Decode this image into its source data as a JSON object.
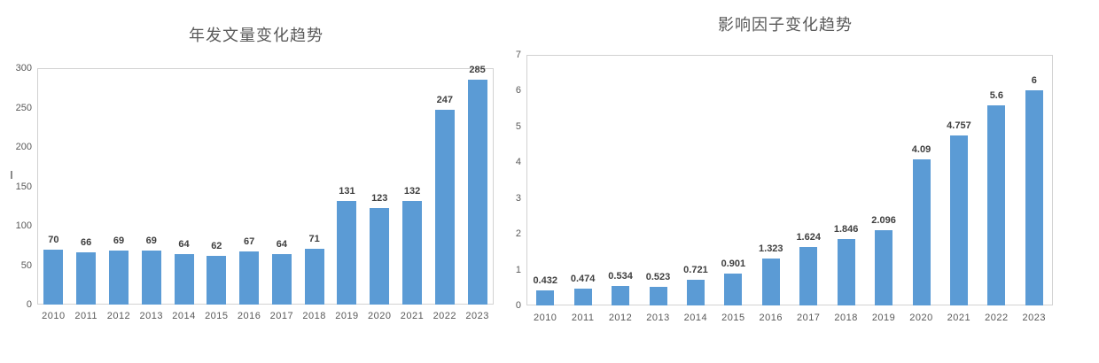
{
  "page": {
    "background": "#ffffff"
  },
  "colors": {
    "bar": "#5B9BD5",
    "title_text": "#595959",
    "axis_text": "#595959",
    "data_label_text": "#3f3f3f",
    "plot_border": "#d2d2d2"
  },
  "chart_data": [
    {
      "type": "bar",
      "title": "年发文量变化趋势",
      "categories": [
        "2010",
        "2011",
        "2012",
        "2013",
        "2014",
        "2015",
        "2016",
        "2017",
        "2018",
        "2019",
        "2020",
        "2021",
        "2022",
        "2023"
      ],
      "values": [
        70,
        66,
        69,
        69,
        64,
        62,
        67,
        64,
        71,
        131,
        123,
        132,
        247,
        285
      ],
      "labels": [
        "70",
        "66",
        "69",
        "69",
        "64",
        "62",
        "67",
        "64",
        "71",
        "131",
        "123",
        "132",
        "247",
        "285"
      ],
      "xlabel": "",
      "ylabel": "",
      "ylim": [
        0,
        300
      ],
      "ytick_step": 50,
      "ytick_labels": [
        "0",
        "50",
        "100",
        "150",
        "200",
        "250",
        "300"
      ],
      "grid": false,
      "legend": false,
      "bar_color": "#5B9BD5"
    },
    {
      "type": "bar",
      "title": "影响因子变化趋势",
      "categories": [
        "2010",
        "2011",
        "2012",
        "2013",
        "2014",
        "2015",
        "2016",
        "2017",
        "2018",
        "2019",
        "2020",
        "2021",
        "2022",
        "2023"
      ],
      "values": [
        0.432,
        0.474,
        0.534,
        0.523,
        0.721,
        0.901,
        1.323,
        1.624,
        1.846,
        2.096,
        4.09,
        4.757,
        5.6,
        6
      ],
      "labels": [
        "0.432",
        "0.474",
        "0.534",
        "0.523",
        "0.721",
        "0.901",
        "1.323",
        "1.624",
        "1.846",
        "2.096",
        "4.09",
        "4.757",
        "5.6",
        "6"
      ],
      "xlabel": "",
      "ylabel": "",
      "ylim": [
        0,
        7
      ],
      "ytick_step": 1,
      "ytick_labels": [
        "0",
        "1",
        "2",
        "3",
        "4",
        "5",
        "6",
        "7"
      ],
      "grid": false,
      "legend": false,
      "bar_color": "#5B9BD5"
    }
  ]
}
